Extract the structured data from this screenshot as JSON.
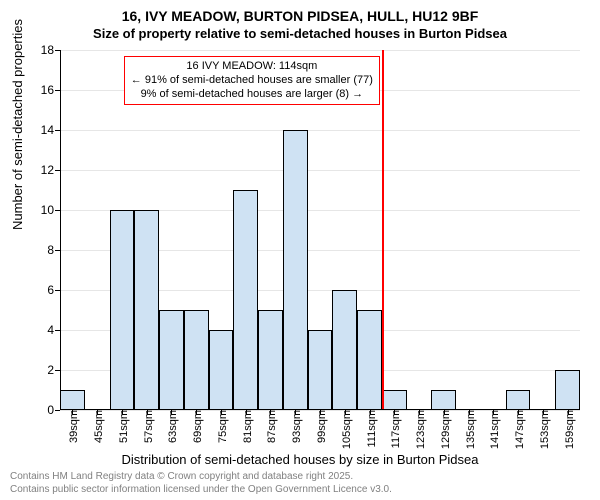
{
  "title_line1": "16, IVY MEADOW, BURTON PIDSEA, HULL, HU12 9BF",
  "title_line2": "Size of property relative to semi-detached houses in Burton Pidsea",
  "ylabel": "Number of semi-detached properties",
  "xlabel": "Distribution of semi-detached houses by size in Burton Pidsea",
  "footer_line1": "Contains HM Land Registry data © Crown copyright and database right 2025.",
  "footer_line2": "Contains public sector information licensed under the Open Government Licence v3.0.",
  "chart": {
    "type": "histogram",
    "background_color": "#ffffff",
    "grid_color": "#e6e6e6",
    "axis_color": "#000000",
    "bar_fill": "#cfe2f3",
    "bar_border": "#000000",
    "label_fontsize": 13,
    "tick_fontsize": 12,
    "x_unit_suffix": "sqm",
    "bin_width": 6,
    "bins_start": 36,
    "ylim": [
      0,
      18
    ],
    "ytick_step": 2,
    "categories": [
      39,
      45,
      51,
      57,
      63,
      69,
      75,
      81,
      87,
      93,
      99,
      105,
      111,
      117,
      123,
      129,
      135,
      141,
      147,
      153,
      159
    ],
    "values": [
      1,
      0,
      10,
      10,
      5,
      5,
      4,
      11,
      5,
      14,
      4,
      6,
      5,
      1,
      0,
      1,
      0,
      0,
      1,
      0,
      2
    ],
    "marker": {
      "x": 114,
      "color": "#ff0000",
      "box_border": "#ff0000",
      "box_bg": "#ffffff",
      "line1": "16 IVY MEADOW: 114sqm",
      "line2": "← 91% of semi-detached houses are smaller (77)",
      "line3": "9% of semi-detached houses are larger (8) →"
    }
  }
}
